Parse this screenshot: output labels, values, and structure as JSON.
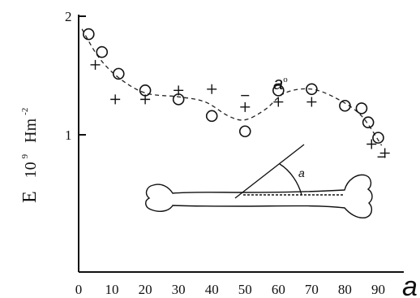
{
  "chart_data": {
    "type": "scatter",
    "title": "",
    "xlabel": "a",
    "ylabel_main": "E",
    "ylabel_exp": "10",
    "ylabel_exp_sup": "9",
    "ylabel_unit": "Hm",
    "ylabel_unit_sup": "-2",
    "xlim": [
      0,
      95
    ],
    "ylim": [
      0,
      2
    ],
    "x_ticks": [
      "0",
      "10",
      "20",
      "30",
      "40",
      "50",
      "60",
      "70",
      "80",
      "90"
    ],
    "y_ticks": [
      "1",
      "2"
    ],
    "series": [
      {
        "marker": "circle",
        "points": [
          [
            3,
            1.86
          ],
          [
            7,
            1.72
          ],
          [
            12,
            1.55
          ],
          [
            20,
            1.42
          ],
          [
            30,
            1.35
          ],
          [
            40,
            1.22
          ],
          [
            50,
            1.1
          ],
          [
            60,
            1.42
          ],
          [
            70,
            1.43
          ],
          [
            80,
            1.3
          ],
          [
            85,
            1.28
          ],
          [
            87,
            1.17
          ],
          [
            90,
            1.05
          ]
        ]
      },
      {
        "marker": "plus",
        "points": [
          [
            5,
            1.62
          ],
          [
            11,
            1.35
          ],
          [
            20,
            1.35
          ],
          [
            30,
            1.42
          ],
          [
            40,
            1.43
          ],
          [
            50,
            1.29
          ],
          [
            60,
            1.33
          ],
          [
            70,
            1.33
          ],
          [
            88,
            1.0
          ],
          [
            92,
            0.93
          ]
        ]
      },
      {
        "marker": "dash",
        "points": [
          [
            50,
            1.38
          ],
          [
            91,
            0.9
          ]
        ]
      }
    ],
    "trend_line": {
      "style": "dashed",
      "points": [
        [
          1,
          1.9
        ],
        [
          6,
          1.68
        ],
        [
          12,
          1.52
        ],
        [
          20,
          1.4
        ],
        [
          30,
          1.37
        ],
        [
          38,
          1.33
        ],
        [
          45,
          1.22
        ],
        [
          50,
          1.19
        ],
        [
          56,
          1.27
        ],
        [
          62,
          1.4
        ],
        [
          70,
          1.43
        ],
        [
          78,
          1.35
        ],
        [
          85,
          1.22
        ],
        [
          91,
          0.99
        ]
      ]
    },
    "annotation_text": "a",
    "annotation_sup": "o",
    "inset_angle_label": "a"
  }
}
